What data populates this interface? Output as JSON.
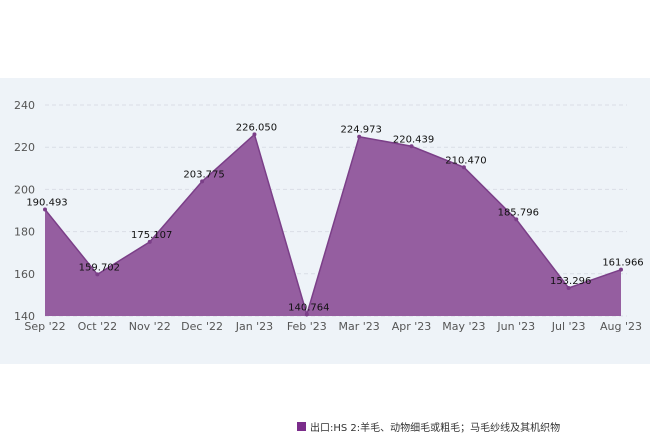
{
  "chart_data": {
    "type": "area",
    "categories": [
      "Sep '22",
      "Oct '22",
      "Nov '22",
      "Dec '22",
      "Jan '23",
      "Feb '23",
      "Mar '23",
      "Apr '23",
      "May '23",
      "Jun '23",
      "Jul '23",
      "Aug '23"
    ],
    "series": [
      {
        "name": "出口:HS 2:羊毛、动物细毛或粗毛；马毛纱线及其机织物",
        "values": [
          190.493,
          159.702,
          175.107,
          203.775,
          226.05,
          140.764,
          224.973,
          220.439,
          210.47,
          185.796,
          153.296,
          161.966
        ],
        "labels": [
          "190.493",
          "159.702",
          "175.107",
          "203.775",
          "226.050",
          "140.764",
          "224.973",
          "220.439",
          "210.470",
          "185.796",
          "153.296",
          "161.966"
        ]
      }
    ],
    "ylim": [
      140,
      240
    ],
    "yticks": [
      "140",
      "160",
      "180",
      "200",
      "220",
      "240"
    ],
    "grid": true,
    "legend_position": "bottom",
    "colors": {
      "area": "#955ea0",
      "line": "#7b3f88",
      "swatch": "#7b2d8b"
    }
  }
}
